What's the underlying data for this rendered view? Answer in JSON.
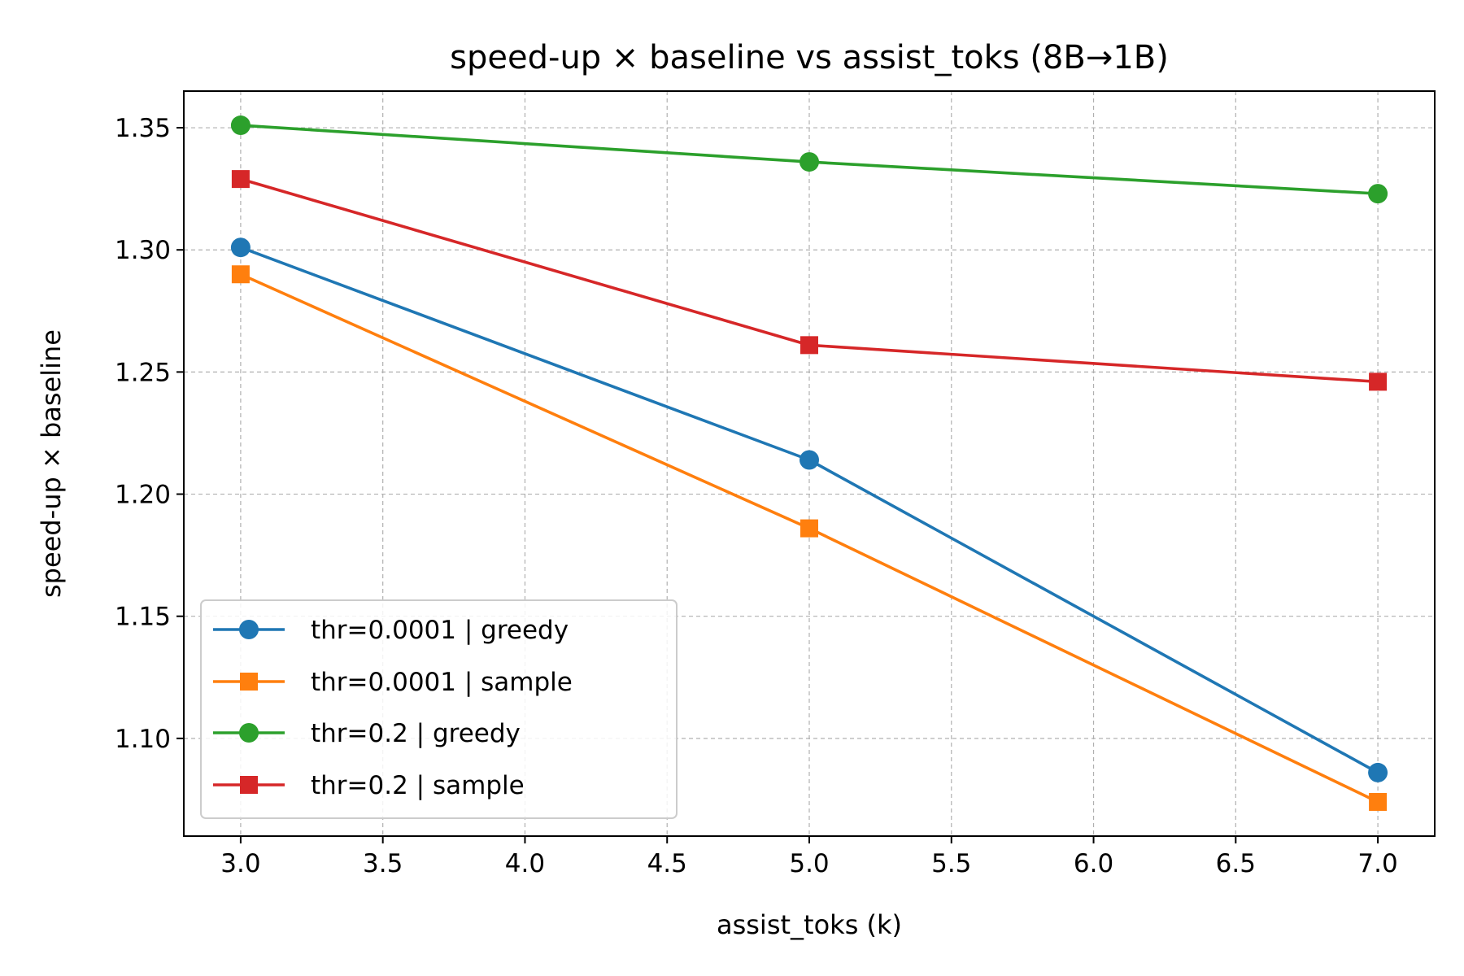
{
  "chart_data": {
    "type": "line",
    "title": "speed-up × baseline vs assist_toks (8B→1B)",
    "xlabel": "assist_toks (k)",
    "ylabel": "speed-up × baseline",
    "xlim": [
      2.8,
      7.2
    ],
    "ylim": [
      1.06,
      1.365
    ],
    "xticks": [
      "3.0",
      "3.5",
      "4.0",
      "4.5",
      "5.0",
      "5.5",
      "6.0",
      "6.5",
      "7.0"
    ],
    "xtick_values": [
      3.0,
      3.5,
      4.0,
      4.5,
      5.0,
      5.5,
      6.0,
      6.5,
      7.0
    ],
    "yticks": [
      "1.10",
      "1.15",
      "1.20",
      "1.25",
      "1.30",
      "1.35"
    ],
    "ytick_values": [
      1.1,
      1.15,
      1.2,
      1.25,
      1.3,
      1.35
    ],
    "grid": true,
    "legend_position": "lower-left",
    "x": [
      3,
      5,
      7
    ],
    "series": [
      {
        "name": "thr=0.0001 | greedy",
        "values": [
          1.301,
          1.214,
          1.086
        ],
        "color": "#1f77b4",
        "marker": "circle"
      },
      {
        "name": "thr=0.0001 | sample",
        "values": [
          1.29,
          1.186,
          1.074
        ],
        "color": "#ff7f0e",
        "marker": "square"
      },
      {
        "name": "thr=0.2 | greedy",
        "values": [
          1.351,
          1.336,
          1.323
        ],
        "color": "#2ca02c",
        "marker": "circle"
      },
      {
        "name": "thr=0.2 | sample",
        "values": [
          1.329,
          1.261,
          1.246
        ],
        "color": "#d62728",
        "marker": "square"
      }
    ]
  }
}
